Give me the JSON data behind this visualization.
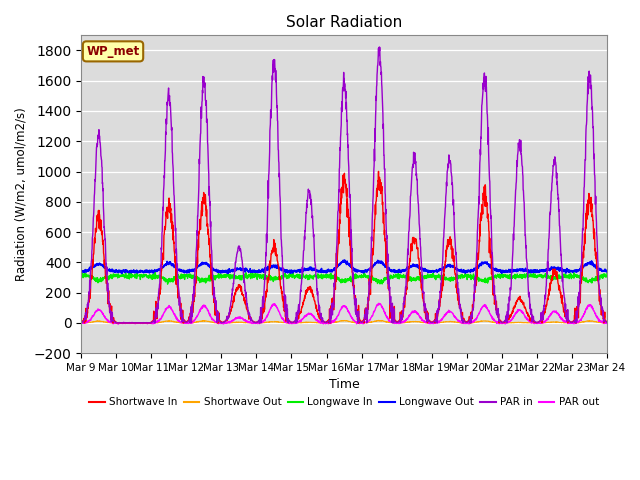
{
  "title": "Solar Radiation",
  "ylabel": "Radiation (W/m2, umol/m2/s)",
  "xlabel": "Time",
  "ylim": [
    -200,
    1900
  ],
  "yticks": [
    -200,
    0,
    200,
    400,
    600,
    800,
    1000,
    1200,
    1400,
    1600,
    1800
  ],
  "start_day": 9,
  "end_day": 24,
  "n_days": 15,
  "site_label": "WP_met",
  "bg_color": "#dcdcdc",
  "series": {
    "sw_in": {
      "label": "Shortwave In",
      "color": "#ff0000"
    },
    "sw_out": {
      "label": "Shortwave Out",
      "color": "#ffa500"
    },
    "lw_in": {
      "label": "Longwave In",
      "color": "#00ee00"
    },
    "lw_out": {
      "label": "Longwave Out",
      "color": "#0000ff"
    },
    "par_in": {
      "label": "PAR in",
      "color": "#9900cc"
    },
    "par_out": {
      "label": "PAR out",
      "color": "#ff00ff"
    }
  },
  "sw_in_peaks": [
    700,
    0,
    780,
    820,
    240,
    500,
    230,
    940,
    940,
    560,
    550,
    840,
    160,
    330,
    810
  ],
  "par_in_peaks": [
    1240,
    0,
    1510,
    1590,
    500,
    1730,
    870,
    1590,
    1800,
    1095,
    1080,
    1620,
    1190,
    1070,
    1640
  ],
  "lw_out_base": 340,
  "lw_in_base": 310,
  "sw_out_scale": 0.015,
  "par_out_max": 100
}
